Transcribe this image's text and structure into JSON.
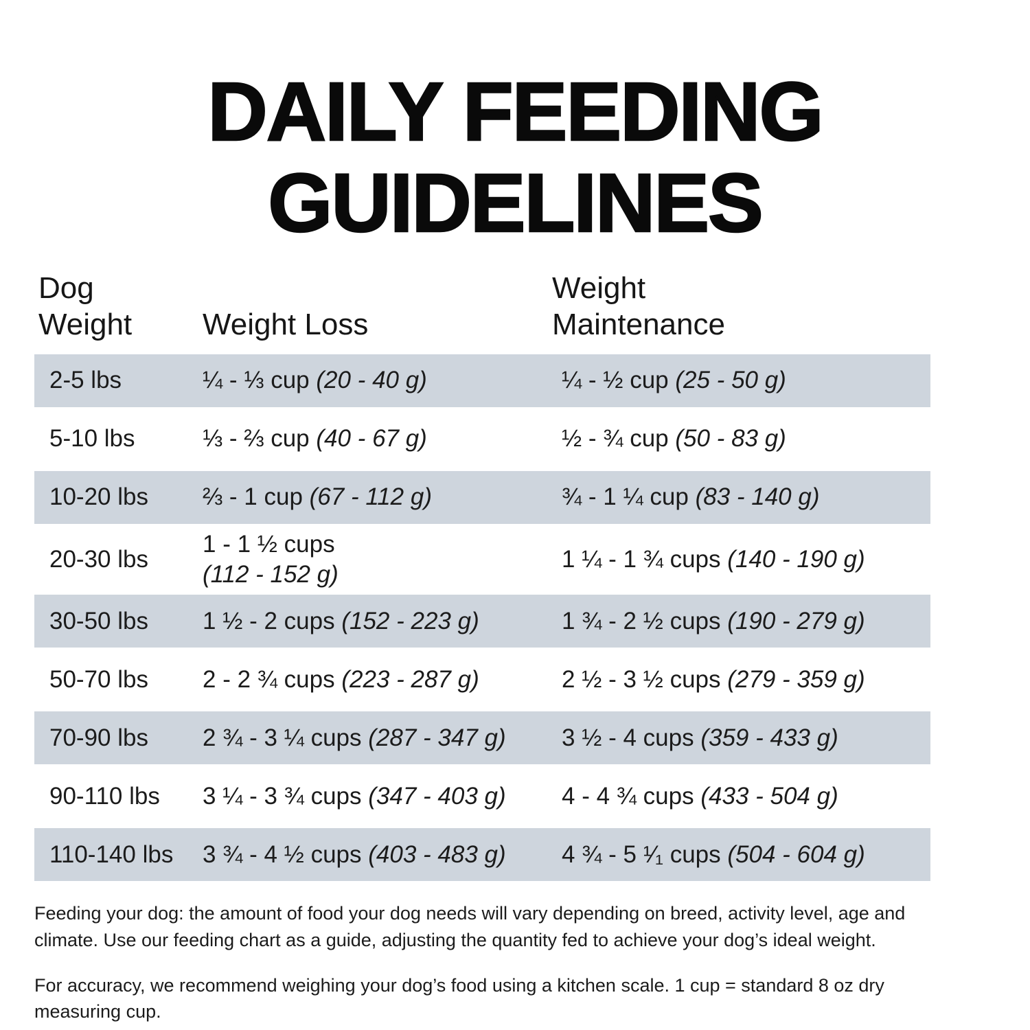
{
  "title": {
    "line1": "DAILY FEEDING",
    "line2": "GUIDELINES"
  },
  "table": {
    "headers": {
      "dog_weight": {
        "line1": "Dog",
        "line2": "Weight"
      },
      "weight_loss": "Weight Loss",
      "weight_maintenance": {
        "line1": "Weight",
        "line2": "Maintenance"
      }
    },
    "rows": [
      {
        "weight": "2-5 lbs",
        "loss_cups": "¼ - ⅓ cup",
        "loss_grams": "(20 - 40 g)",
        "maint_cups": "¼ - ½ cup",
        "maint_grams": "(25 - 50 g)"
      },
      {
        "weight": "5-10 lbs",
        "loss_cups": "⅓ - ⅔ cup",
        "loss_grams": "(40 - 67 g)",
        "maint_cups": "½ - ¾ cup",
        "maint_grams": "(50 - 83 g)"
      },
      {
        "weight": "10-20 lbs",
        "loss_cups": "⅔ - 1 cup",
        "loss_grams": "(67 - 112 g)",
        "maint_cups": "¾ - 1 ¼ cup",
        "maint_grams": "(83 - 140 g)"
      },
      {
        "weight": "20-30 lbs",
        "loss_cups": "1 - 1 ½ cups",
        "loss_grams": "(112 - 152 g)",
        "maint_cups": "1 ¼ - 1 ¾ cups",
        "maint_grams": "(140 - 190 g)"
      },
      {
        "weight": "30-50 lbs",
        "loss_cups": "1 ½ - 2 cups",
        "loss_grams": "(152 - 223 g)",
        "maint_cups": "1 ¾ - 2 ½ cups",
        "maint_grams": "(190 - 279 g)"
      },
      {
        "weight": "50-70 lbs",
        "loss_cups": "2 - 2 ¾ cups",
        "loss_grams": "(223 - 287 g)",
        "maint_cups": "2 ½ - 3 ½ cups",
        "maint_grams": "(279 - 359 g)"
      },
      {
        "weight": "70-90 lbs",
        "loss_cups": "2 ¾ - 3 ¼ cups",
        "loss_grams": "(287 - 347 g)",
        "maint_cups": "3 ½ - 4 cups",
        "maint_grams": "(359 - 433 g)"
      },
      {
        "weight": "90-110 lbs",
        "loss_cups": "3 ¼ - 3 ¾ cups",
        "loss_grams": "(347 - 403 g)",
        "maint_cups": "4 - 4 ¾ cups",
        "maint_grams": "(433 - 504 g)"
      },
      {
        "weight": "110-140 lbs",
        "loss_cups": "3 ¾ - 4 ½ cups",
        "loss_grams": "(403 - 483 g)",
        "maint_cups": "4 ¾ - 5 ¹⁄₁ cups",
        "maint_grams": "(504 - 604 g)"
      }
    ]
  },
  "notes": [
    "Feeding your dog: the amount of food your dog needs will vary depending on breed, activity level, age and climate. Use our feeding chart as a guide, adjusting the quantity fed to achieve your dog’s ideal weight.",
    "For accuracy, we recommend weighing your dog’s food using a kitchen scale. 1 cup = standard 8 oz dry measuring cup."
  ],
  "colors": {
    "row_shaded": "#ced5dd",
    "text": "#1b1b1b",
    "title": "#0a0a0a"
  }
}
